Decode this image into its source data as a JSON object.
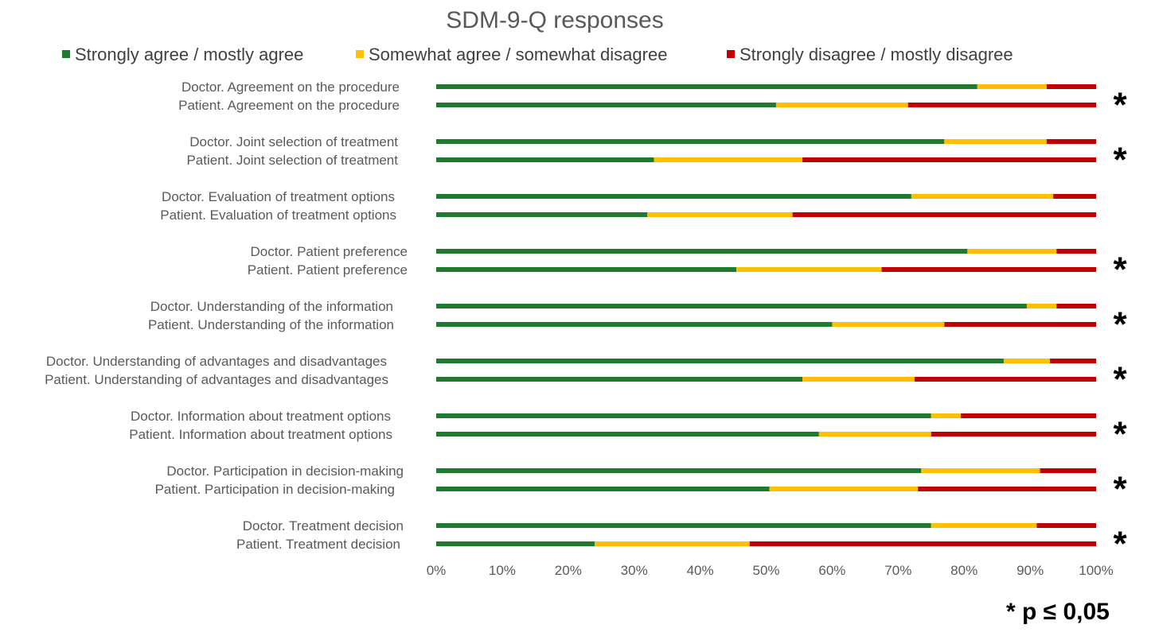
{
  "chart_data": {
    "type": "bar",
    "orientation": "horizontal",
    "stacked": true,
    "percent": true,
    "title": "SDM-9-Q responses",
    "xlim": [
      0,
      100
    ],
    "x_ticks": [
      "0%",
      "10%",
      "20%",
      "30%",
      "40%",
      "50%",
      "60%",
      "70%",
      "80%",
      "90%",
      "100%"
    ],
    "legend_position": "top",
    "grid": false,
    "series": [
      {
        "name": "Strongly agree / mostly agree",
        "color": "#1e7b2e"
      },
      {
        "name": "Somewhat agree / somewhat disagree",
        "color": "#ffc000"
      },
      {
        "name": "Strongly disagree / mostly disagree",
        "color": "#c00000"
      }
    ],
    "groups": [
      {
        "significant": true,
        "rows": [
          {
            "label": "Doctor. Agreement on the procedure",
            "values": [
              82,
              10.5,
              7.5
            ]
          },
          {
            "label": "Patient. Agreement on the procedure",
            "values": [
              51.5,
              20,
              28.5
            ]
          }
        ]
      },
      {
        "significant": true,
        "rows": [
          {
            "label": "Doctor. Joint selection of treatment",
            "values": [
              77,
              15.5,
              7.5
            ]
          },
          {
            "label": "Patient. Joint selection of treatment",
            "values": [
              33,
              22.5,
              44.5
            ]
          }
        ]
      },
      {
        "significant": false,
        "rows": [
          {
            "label": "Doctor. Evaluation of treatment options",
            "values": [
              72,
              21.5,
              6.5
            ]
          },
          {
            "label": "Patient. Evaluation of treatment options",
            "values": [
              32,
              22,
              46
            ]
          }
        ]
      },
      {
        "significant": true,
        "rows": [
          {
            "label": "Doctor. Patient preference",
            "values": [
              80.5,
              13.5,
              6
            ]
          },
          {
            "label": "Patient. Patient preference",
            "values": [
              45.5,
              22,
              32.5
            ]
          }
        ]
      },
      {
        "significant": true,
        "rows": [
          {
            "label": "Doctor. Understanding of the information",
            "values": [
              89.5,
              4.5,
              6
            ]
          },
          {
            "label": "Patient. Understanding of the information",
            "values": [
              60,
              17,
              23
            ]
          }
        ]
      },
      {
        "significant": true,
        "rows": [
          {
            "label": "Doctor. Understanding of advantages and disadvantages",
            "values": [
              86,
              7,
              7
            ]
          },
          {
            "label": "Patient. Understanding of advantages and disadvantages",
            "values": [
              55.5,
              17,
              27.5
            ]
          }
        ]
      },
      {
        "significant": true,
        "rows": [
          {
            "label": "Doctor. Information about treatment options",
            "values": [
              75,
              4.5,
              20.5
            ]
          },
          {
            "label": "Patient. Information about treatment options",
            "values": [
              58,
              17,
              25
            ]
          }
        ]
      },
      {
        "significant": true,
        "rows": [
          {
            "label": "Doctor. Participation in decision-making",
            "values": [
              73.5,
              18,
              8.5
            ]
          },
          {
            "label": "Patient. Participation in decision-making",
            "values": [
              50.5,
              22.5,
              27
            ]
          }
        ]
      },
      {
        "significant": true,
        "rows": [
          {
            "label": "Doctor. Treatment decision",
            "values": [
              75,
              16,
              9
            ]
          },
          {
            "label": "Patient. Treatment decision",
            "values": [
              24,
              23.5,
              52.5
            ]
          }
        ]
      }
    ],
    "significance_marker": "*",
    "footnote": "* p ≤ 0,05"
  }
}
